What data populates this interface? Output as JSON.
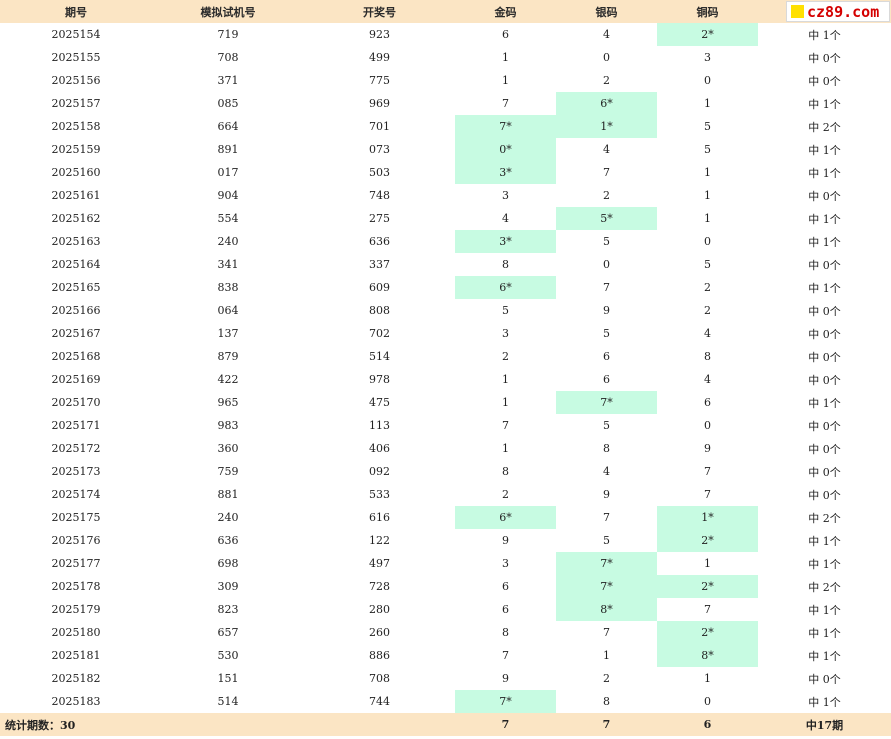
{
  "headers": [
    "期号",
    "模拟试机号",
    "开奖号",
    "金码",
    "银码",
    "铜码",
    ""
  ],
  "logo_text": "cz89.com",
  "rows": [
    {
      "period": "2025154",
      "sim": "719",
      "draw": "923",
      "gold": "6",
      "silver": "4",
      "bronze": "2*",
      "result": "中 1个",
      "gold_hit": false,
      "silver_hit": false,
      "bronze_hit": true
    },
    {
      "period": "2025155",
      "sim": "708",
      "draw": "499",
      "gold": "1",
      "silver": "0",
      "bronze": "3",
      "result": "中 0个",
      "gold_hit": false,
      "silver_hit": false,
      "bronze_hit": false
    },
    {
      "period": "2025156",
      "sim": "371",
      "draw": "775",
      "gold": "1",
      "silver": "2",
      "bronze": "0",
      "result": "中 0个",
      "gold_hit": false,
      "silver_hit": false,
      "bronze_hit": false
    },
    {
      "period": "2025157",
      "sim": "085",
      "draw": "969",
      "gold": "7",
      "silver": "6*",
      "bronze": "1",
      "result": "中 1个",
      "gold_hit": false,
      "silver_hit": true,
      "bronze_hit": false
    },
    {
      "period": "2025158",
      "sim": "664",
      "draw": "701",
      "gold": "7*",
      "silver": "1*",
      "bronze": "5",
      "result": "中 2个",
      "gold_hit": true,
      "silver_hit": true,
      "bronze_hit": false
    },
    {
      "period": "2025159",
      "sim": "891",
      "draw": "073",
      "gold": "0*",
      "silver": "4",
      "bronze": "5",
      "result": "中 1个",
      "gold_hit": true,
      "silver_hit": false,
      "bronze_hit": false
    },
    {
      "period": "2025160",
      "sim": "017",
      "draw": "503",
      "gold": "3*",
      "silver": "7",
      "bronze": "1",
      "result": "中 1个",
      "gold_hit": true,
      "silver_hit": false,
      "bronze_hit": false
    },
    {
      "period": "2025161",
      "sim": "904",
      "draw": "748",
      "gold": "3",
      "silver": "2",
      "bronze": "1",
      "result": "中 0个",
      "gold_hit": false,
      "silver_hit": false,
      "bronze_hit": false
    },
    {
      "period": "2025162",
      "sim": "554",
      "draw": "275",
      "gold": "4",
      "silver": "5*",
      "bronze": "1",
      "result": "中 1个",
      "gold_hit": false,
      "silver_hit": true,
      "bronze_hit": false
    },
    {
      "period": "2025163",
      "sim": "240",
      "draw": "636",
      "gold": "3*",
      "silver": "5",
      "bronze": "0",
      "result": "中 1个",
      "gold_hit": true,
      "silver_hit": false,
      "bronze_hit": false
    },
    {
      "period": "2025164",
      "sim": "341",
      "draw": "337",
      "gold": "8",
      "silver": "0",
      "bronze": "5",
      "result": "中 0个",
      "gold_hit": false,
      "silver_hit": false,
      "bronze_hit": false
    },
    {
      "period": "2025165",
      "sim": "838",
      "draw": "609",
      "gold": "6*",
      "silver": "7",
      "bronze": "2",
      "result": "中 1个",
      "gold_hit": true,
      "silver_hit": false,
      "bronze_hit": false
    },
    {
      "period": "2025166",
      "sim": "064",
      "draw": "808",
      "gold": "5",
      "silver": "9",
      "bronze": "2",
      "result": "中 0个",
      "gold_hit": false,
      "silver_hit": false,
      "bronze_hit": false
    },
    {
      "period": "2025167",
      "sim": "137",
      "draw": "702",
      "gold": "3",
      "silver": "5",
      "bronze": "4",
      "result": "中 0个",
      "gold_hit": false,
      "silver_hit": false,
      "bronze_hit": false
    },
    {
      "period": "2025168",
      "sim": "879",
      "draw": "514",
      "gold": "2",
      "silver": "6",
      "bronze": "8",
      "result": "中 0个",
      "gold_hit": false,
      "silver_hit": false,
      "bronze_hit": false
    },
    {
      "period": "2025169",
      "sim": "422",
      "draw": "978",
      "gold": "1",
      "silver": "6",
      "bronze": "4",
      "result": "中 0个",
      "gold_hit": false,
      "silver_hit": false,
      "bronze_hit": false
    },
    {
      "period": "2025170",
      "sim": "965",
      "draw": "475",
      "gold": "1",
      "silver": "7*",
      "bronze": "6",
      "result": "中 1个",
      "gold_hit": false,
      "silver_hit": true,
      "bronze_hit": false
    },
    {
      "period": "2025171",
      "sim": "983",
      "draw": "113",
      "gold": "7",
      "silver": "5",
      "bronze": "0",
      "result": "中 0个",
      "gold_hit": false,
      "silver_hit": false,
      "bronze_hit": false
    },
    {
      "period": "2025172",
      "sim": "360",
      "draw": "406",
      "gold": "1",
      "silver": "8",
      "bronze": "9",
      "result": "中 0个",
      "gold_hit": false,
      "silver_hit": false,
      "bronze_hit": false
    },
    {
      "period": "2025173",
      "sim": "759",
      "draw": "092",
      "gold": "8",
      "silver": "4",
      "bronze": "7",
      "result": "中 0个",
      "gold_hit": false,
      "silver_hit": false,
      "bronze_hit": false
    },
    {
      "period": "2025174",
      "sim": "881",
      "draw": "533",
      "gold": "2",
      "silver": "9",
      "bronze": "7",
      "result": "中 0个",
      "gold_hit": false,
      "silver_hit": false,
      "bronze_hit": false
    },
    {
      "period": "2025175",
      "sim": "240",
      "draw": "616",
      "gold": "6*",
      "silver": "7",
      "bronze": "1*",
      "result": "中 2个",
      "gold_hit": true,
      "silver_hit": false,
      "bronze_hit": true
    },
    {
      "period": "2025176",
      "sim": "636",
      "draw": "122",
      "gold": "9",
      "silver": "5",
      "bronze": "2*",
      "result": "中 1个",
      "gold_hit": false,
      "silver_hit": false,
      "bronze_hit": true
    },
    {
      "period": "2025177",
      "sim": "698",
      "draw": "497",
      "gold": "3",
      "silver": "7*",
      "bronze": "1",
      "result": "中 1个",
      "gold_hit": false,
      "silver_hit": true,
      "bronze_hit": false
    },
    {
      "period": "2025178",
      "sim": "309",
      "draw": "728",
      "gold": "6",
      "silver": "7*",
      "bronze": "2*",
      "result": "中 2个",
      "gold_hit": false,
      "silver_hit": true,
      "bronze_hit": true
    },
    {
      "period": "2025179",
      "sim": "823",
      "draw": "280",
      "gold": "6",
      "silver": "8*",
      "bronze": "7",
      "result": "中 1个",
      "gold_hit": false,
      "silver_hit": true,
      "bronze_hit": false
    },
    {
      "period": "2025180",
      "sim": "657",
      "draw": "260",
      "gold": "8",
      "silver": "7",
      "bronze": "2*",
      "result": "中 1个",
      "gold_hit": false,
      "silver_hit": false,
      "bronze_hit": true
    },
    {
      "period": "2025181",
      "sim": "530",
      "draw": "886",
      "gold": "7",
      "silver": "1",
      "bronze": "8*",
      "result": "中 1个",
      "gold_hit": false,
      "silver_hit": false,
      "bronze_hit": true
    },
    {
      "period": "2025182",
      "sim": "151",
      "draw": "708",
      "gold": "9",
      "silver": "2",
      "bronze": "1",
      "result": "中 0个",
      "gold_hit": false,
      "silver_hit": false,
      "bronze_hit": false
    },
    {
      "period": "2025183",
      "sim": "514",
      "draw": "744",
      "gold": "7*",
      "silver": "8",
      "bronze": "0",
      "result": "中 1个",
      "gold_hit": true,
      "silver_hit": false,
      "bronze_hit": false
    }
  ],
  "footer": {
    "label": "统计期数：30",
    "gold": "7",
    "silver": "7",
    "bronze": "6",
    "result": "中17期"
  },
  "colors": {
    "header_bg": "#fbe5c4",
    "hit_bg": "#c7fbe2",
    "logo_text": "#d40000",
    "logo_square": "#ffe000"
  }
}
